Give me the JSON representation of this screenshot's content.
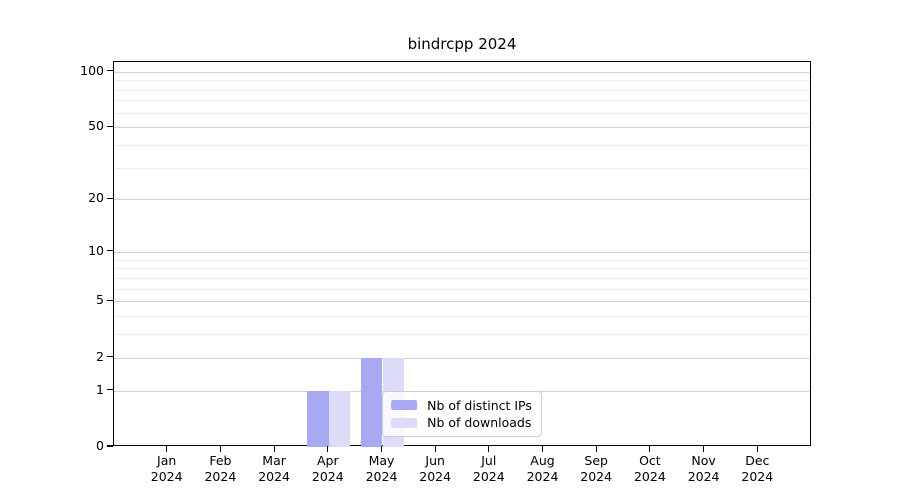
{
  "chart_data": {
    "type": "bar",
    "title": "bindrcpp 2024",
    "xlabel": "",
    "ylabel": "",
    "year": "2024",
    "categories": [
      "Jan",
      "Feb",
      "Mar",
      "Apr",
      "May",
      "Jun",
      "Jul",
      "Aug",
      "Sep",
      "Oct",
      "Nov",
      "Dec"
    ],
    "series": [
      {
        "name": "Nb of distinct IPs",
        "color": "#a9a9f1",
        "values": [
          0,
          0,
          0,
          1,
          2,
          0,
          0,
          0,
          0,
          0,
          0,
          0
        ]
      },
      {
        "name": "Nb of downloads",
        "color": "#dcdcf8",
        "values": [
          0,
          0,
          0,
          1,
          2,
          0,
          0,
          0,
          0,
          0,
          0,
          0
        ]
      }
    ],
    "y_scale": "log1p",
    "y_major_ticks": [
      0,
      1,
      2,
      5,
      10,
      20,
      50,
      100
    ],
    "y_minor_gridlines": [
      3,
      4,
      6,
      7,
      8,
      9,
      30,
      40,
      60,
      70,
      80,
      90
    ],
    "ylim": [
      0,
      112.6
    ],
    "grid": "horizontal",
    "legend_position": "lower center",
    "colors": {
      "major_grid": "#d3d3d3",
      "minor_grid": "#ededed",
      "spine": "#000000",
      "text": "#000000",
      "background": "#ffffff"
    }
  }
}
